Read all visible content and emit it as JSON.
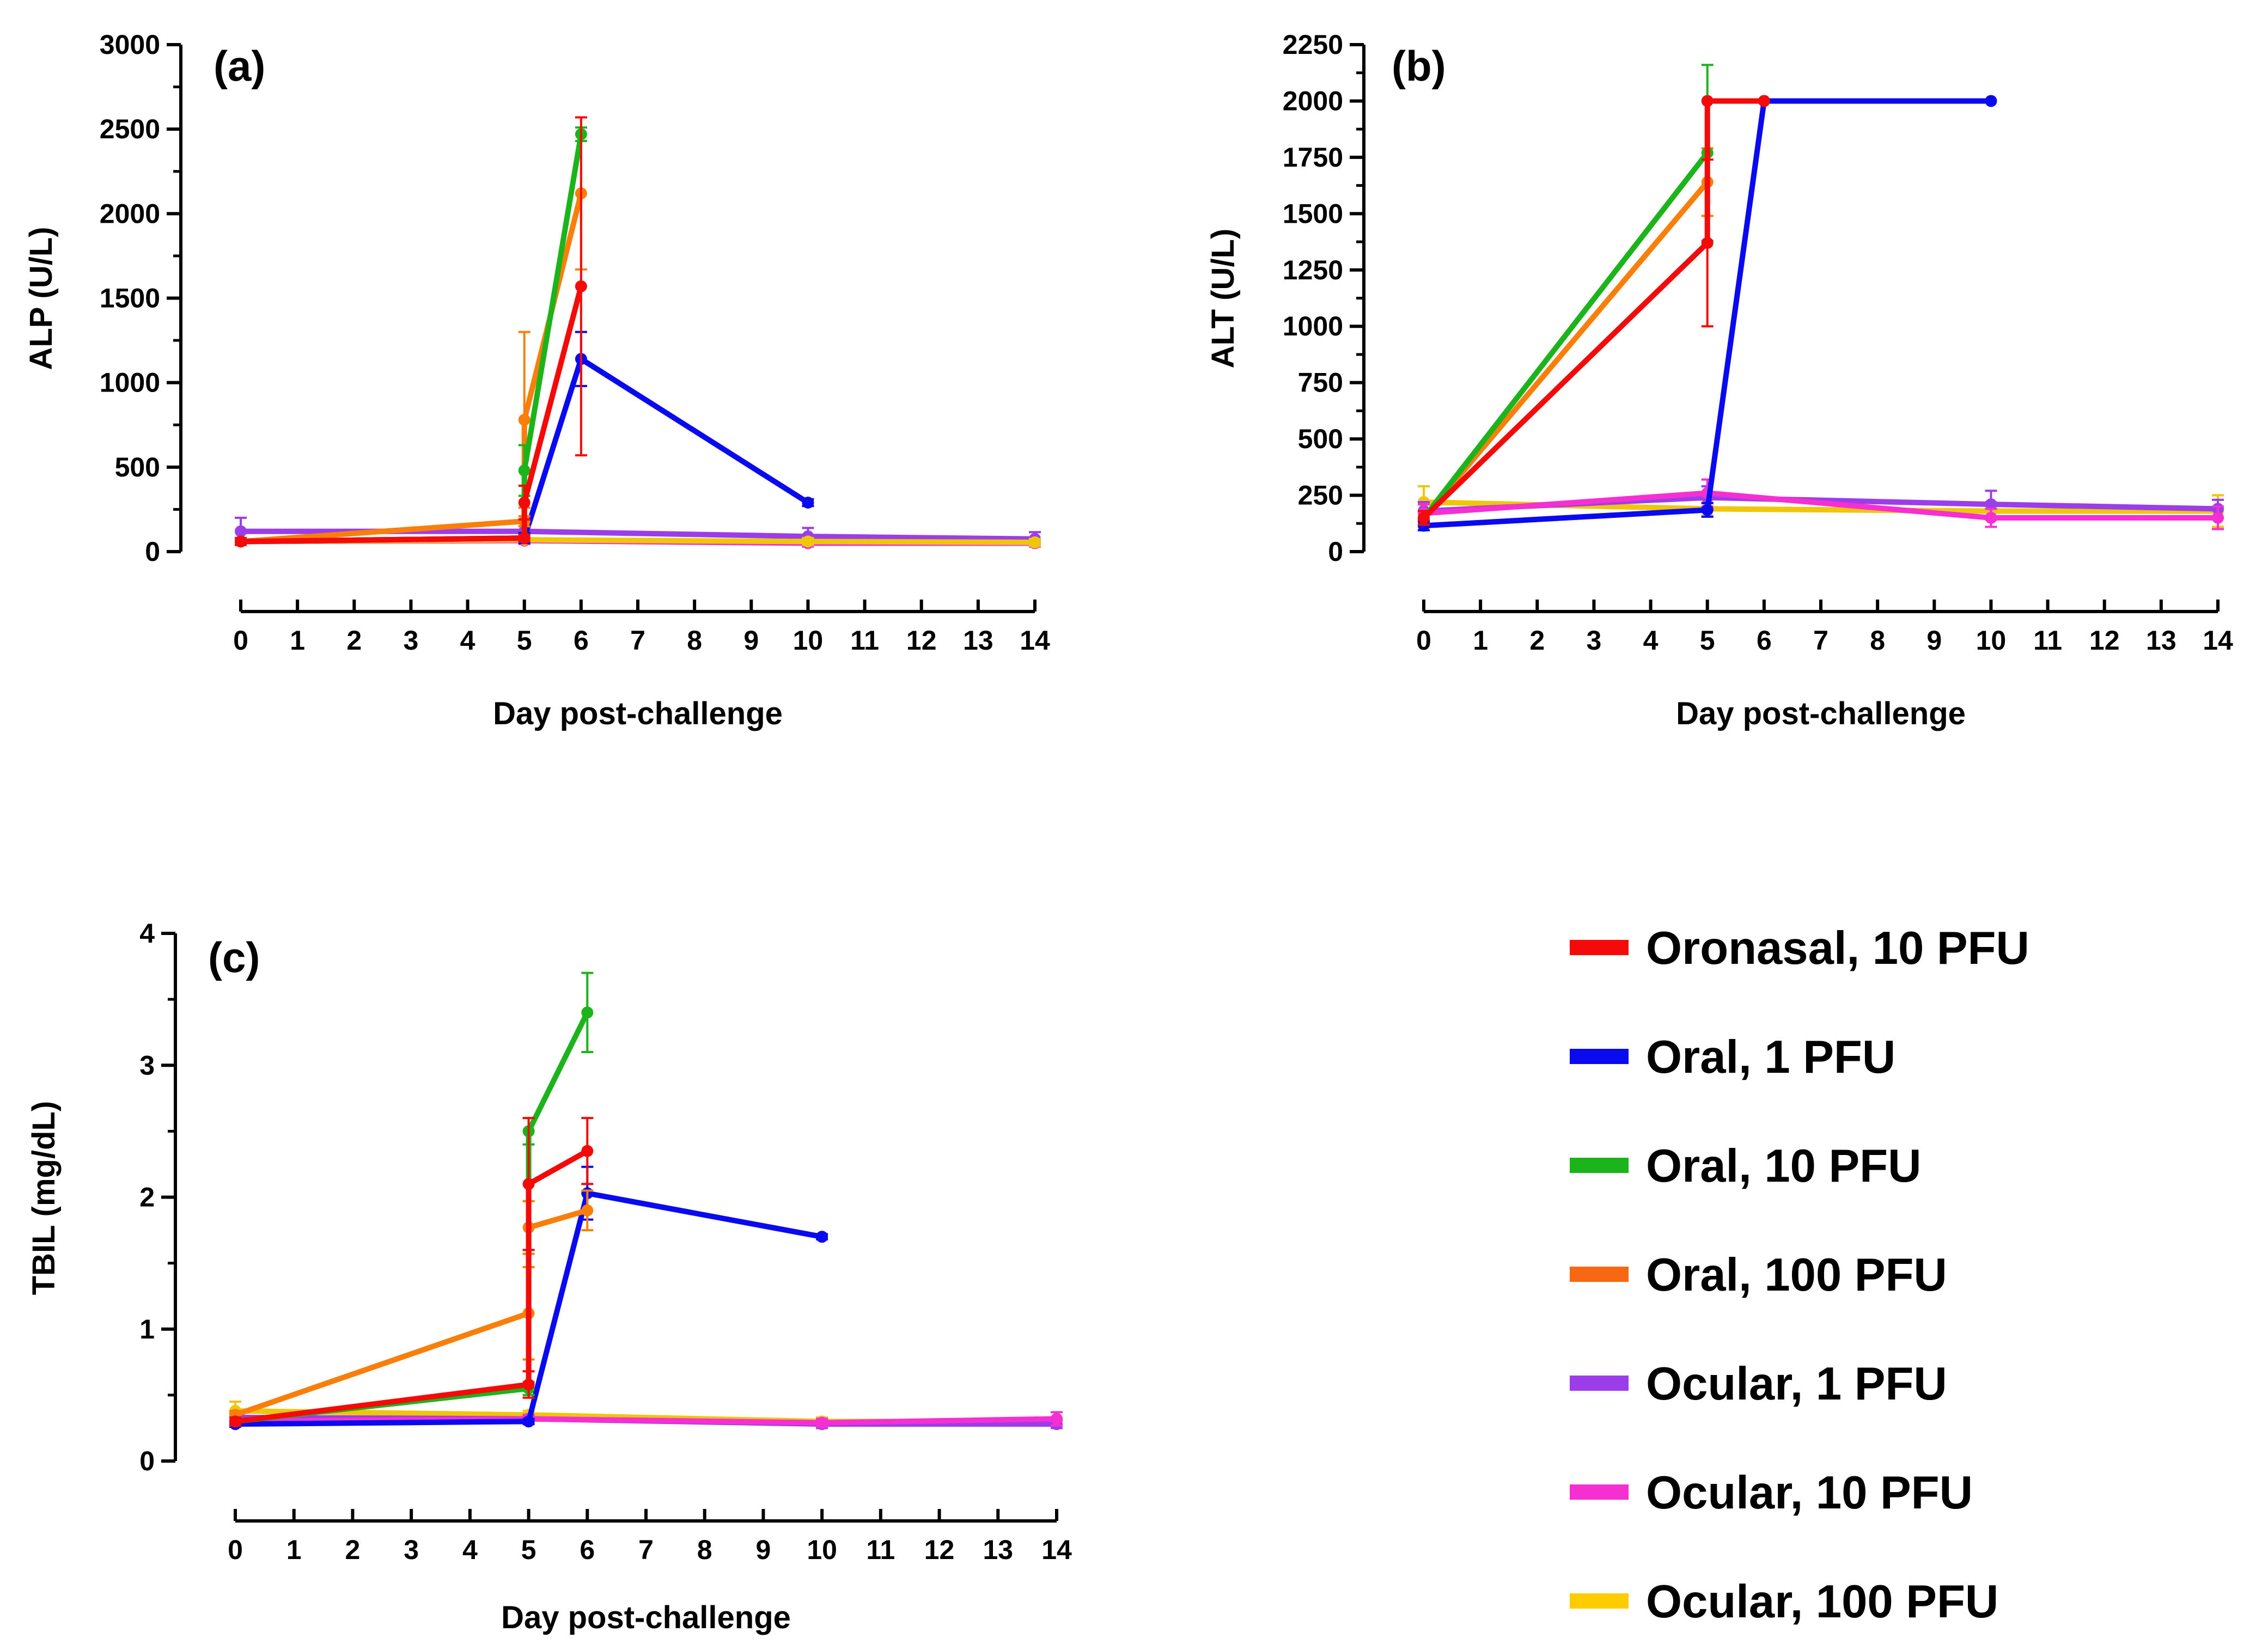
{
  "chart_data": [
    {
      "type": "line",
      "panel_label": "(a)",
      "xlabel": "Day post-challenge",
      "ylabel": "ALP (U/L)",
      "xticks": [
        0,
        1,
        2,
        3,
        4,
        5,
        6,
        7,
        8,
        9,
        10,
        11,
        12,
        13,
        14
      ],
      "yticks": [
        0,
        500,
        1000,
        1500,
        2000,
        2500,
        3000
      ],
      "xlim": [
        0,
        14
      ],
      "ylim": [
        0,
        3000
      ],
      "series": [
        {
          "key": "ocular1",
          "name": "Ocular, 1 PFU",
          "points": [
            [
              0,
              120,
              80
            ],
            [
              5,
              120,
              30
            ],
            [
              10,
              90,
              50
            ],
            [
              14,
              75,
              40
            ]
          ]
        },
        {
          "key": "ocular10",
          "name": "Ocular, 10 PFU",
          "points": [
            [
              0,
              60,
              20
            ],
            [
              5,
              65,
              20
            ],
            [
              10,
              50,
              20
            ],
            [
              14,
              50,
              20
            ]
          ]
        },
        {
          "key": "ocular100",
          "name": "Ocular, 100 PFU",
          "points": [
            [
              0,
              60,
              20
            ],
            [
              5,
              70,
              20
            ],
            [
              10,
              60,
              20
            ],
            [
              14,
              55,
              20
            ]
          ]
        },
        {
          "key": "oral1",
          "name": "Oral, 1 PFU",
          "points": [
            [
              0,
              60,
              20
            ],
            [
              5,
              80,
              30
            ],
            [
              6,
              1140,
              160
            ],
            [
              10,
              290,
              20
            ]
          ]
        },
        {
          "key": "oral100",
          "name": "Oral, 100 PFU",
          "points": [
            [
              0,
              60,
              20
            ],
            [
              5,
              180,
              30
            ],
            [
              5,
              780,
              520
            ],
            [
              6,
              2120,
              450
            ]
          ]
        },
        {
          "key": "oral10",
          "name": "Oral, 10 PFU",
          "points": [
            [
              0,
              60,
              20
            ],
            [
              5,
              80,
              20
            ],
            [
              5,
              480,
              150
            ],
            [
              6,
              2470,
              40
            ]
          ]
        },
        {
          "key": "oronasal10",
          "name": "Oronasal, 10 PFU",
          "points": [
            [
              0,
              60,
              20
            ],
            [
              5,
              80,
              20
            ],
            [
              5,
              290,
              100
            ],
            [
              6,
              1570,
              1000
            ]
          ]
        }
      ]
    },
    {
      "type": "line",
      "panel_label": "(b)",
      "xlabel": "Day post-challenge",
      "ylabel": "ALT (U/L)",
      "xticks": [
        0,
        1,
        2,
        3,
        4,
        5,
        6,
        7,
        8,
        9,
        10,
        11,
        12,
        13,
        14
      ],
      "yticks": [
        0,
        250,
        500,
        750,
        1000,
        1250,
        1500,
        1750,
        2000,
        2250
      ],
      "xlim": [
        0,
        14
      ],
      "ylim": [
        0,
        2250
      ],
      "series": [
        {
          "key": "ocular100",
          "name": "Ocular, 100 PFU",
          "points": [
            [
              0,
              220,
              70
            ],
            [
              5,
              190,
              30
            ],
            [
              10,
              180,
              40
            ],
            [
              14,
              180,
              70
            ]
          ]
        },
        {
          "key": "ocular1",
          "name": "Ocular, 1 PFU",
          "points": [
            [
              0,
              180,
              40
            ],
            [
              5,
              240,
              50
            ],
            [
              10,
              210,
              60
            ],
            [
              14,
              190,
              40
            ]
          ]
        },
        {
          "key": "ocular10",
          "name": "Ocular, 10 PFU",
          "points": [
            [
              0,
              170,
              40
            ],
            [
              5,
              260,
              60
            ],
            [
              10,
              150,
              40
            ],
            [
              14,
              150,
              50
            ]
          ]
        },
        {
          "key": "oral1",
          "name": "Oral, 1 PFU",
          "points": [
            [
              0,
              115,
              20
            ],
            [
              5,
              185,
              30
            ],
            [
              6,
              2000,
              0
            ],
            [
              10,
              2000,
              0
            ]
          ]
        },
        {
          "key": "oral100",
          "name": "Oral, 100 PFU",
          "points": [
            [
              0,
              150,
              30
            ],
            [
              5,
              1640,
              150
            ]
          ]
        },
        {
          "key": "oral10",
          "name": "Oral, 10 PFU",
          "points": [
            [
              0,
              150,
              30
            ],
            [
              5,
              1770,
              390
            ]
          ]
        },
        {
          "key": "oronasal10",
          "name": "Oronasal, 10 PFU",
          "points": [
            [
              0,
              150,
              30
            ],
            [
              5,
              1370,
              370
            ],
            [
              5,
              2000,
              0
            ],
            [
              6,
              2000,
              0
            ]
          ]
        }
      ]
    },
    {
      "type": "line",
      "panel_label": "(c)",
      "xlabel": "Day post-challenge",
      "ylabel": "TBIL (mg/dL)",
      "xticks": [
        0,
        1,
        2,
        3,
        4,
        5,
        6,
        7,
        8,
        9,
        10,
        11,
        12,
        13,
        14
      ],
      "yticks": [
        0,
        1,
        2,
        3,
        4
      ],
      "xlim": [
        0,
        14
      ],
      "ylim": [
        0,
        4
      ],
      "series": [
        {
          "key": "ocular100",
          "name": "Ocular, 100 PFU",
          "points": [
            [
              0,
              0.38,
              0.07
            ],
            [
              5,
              0.35,
              0.03
            ],
            [
              10,
              0.3,
              0.03
            ],
            [
              14,
              0.3,
              0.03
            ]
          ]
        },
        {
          "key": "ocular1",
          "name": "Ocular, 1 PFU",
          "points": [
            [
              0,
              0.33,
              0.03
            ],
            [
              5,
              0.32,
              0.03
            ],
            [
              10,
              0.28,
              0.03
            ],
            [
              14,
              0.28,
              0.03
            ]
          ]
        },
        {
          "key": "ocular10",
          "name": "Ocular, 10 PFU",
          "points": [
            [
              0,
              0.3,
              0.03
            ],
            [
              5,
              0.32,
              0.03
            ],
            [
              10,
              0.29,
              0.03
            ],
            [
              14,
              0.32,
              0.05
            ]
          ]
        },
        {
          "key": "oral1",
          "name": "Oral, 1 PFU",
          "points": [
            [
              0,
              0.28,
              0.02
            ],
            [
              5,
              0.3,
              0.02
            ],
            [
              6,
              2.03,
              0.2
            ],
            [
              10,
              1.7,
              0.02
            ]
          ]
        },
        {
          "key": "oral100",
          "name": "Oral, 100 PFU",
          "points": [
            [
              0,
              0.35,
              0.03
            ],
            [
              5,
              1.12,
              0.35
            ],
            [
              5,
              1.77,
              0.2
            ],
            [
              6,
              1.9,
              0.15
            ]
          ]
        },
        {
          "key": "oral10",
          "name": "Oral, 10 PFU",
          "points": [
            [
              0,
              0.3,
              0.03
            ],
            [
              5,
              0.55,
              0.05
            ],
            [
              5,
              2.5,
              0.1
            ],
            [
              6,
              3.4,
              0.3
            ]
          ]
        },
        {
          "key": "oronasal10",
          "name": "Oronasal, 10 PFU",
          "points": [
            [
              0,
              0.3,
              0.03
            ],
            [
              5,
              0.58,
              0.1
            ],
            [
              5,
              2.1,
              0.5
            ],
            [
              6,
              2.35,
              0.25
            ]
          ]
        }
      ]
    }
  ],
  "legend": [
    {
      "key": "oronasal10",
      "label": "Oronasal, 10 PFU"
    },
    {
      "key": "oral1",
      "label": "Oral, 1 PFU"
    },
    {
      "key": "oral10",
      "label": "Oral, 10 PFU"
    },
    {
      "key": "oral100",
      "label": "Oral, 100 PFU"
    },
    {
      "key": "ocular1",
      "label": "Ocular, 1 PFU"
    },
    {
      "key": "ocular10",
      "label": "Ocular, 10 PFU"
    },
    {
      "key": "ocular100",
      "label": "Ocular, 100 PFU"
    }
  ],
  "colors": {
    "oronasal10": "#f50a0a",
    "oral1": "#0a0af0",
    "oral10": "#1bb51b",
    "oral100": "#fa7f0a",
    "ocular1": "#9c3dea",
    "ocular10": "#f52fd2",
    "ocular100": "#f0c60a"
  },
  "legend_swatch_colors": {
    "oronasal10": "#f50a0a",
    "oral1": "#0a0af0",
    "oral10": "#1bb51b",
    "oral100": "#f86812",
    "ocular1": "#9c3dea",
    "ocular10": "#f52fd2",
    "ocular100": "#ffcc00"
  }
}
